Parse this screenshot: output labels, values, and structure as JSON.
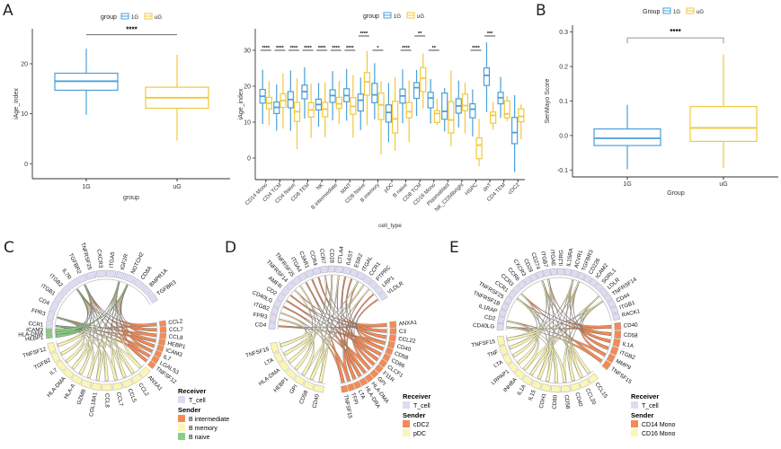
{
  "colors": {
    "g1": "#4a9fd8",
    "uG": "#f2c83a",
    "receiver": "#dddcf3",
    "orange": "#f58a55",
    "yellow": "#fbf6b6",
    "green": "#8ccf84",
    "axis": "#333333",
    "sig": "#555555"
  },
  "panels": {
    "A": "A",
    "B": "B",
    "C": "C",
    "D": "D",
    "E": "E"
  },
  "chart_data": [
    {
      "id": "A1",
      "type": "box",
      "title": "",
      "legend": {
        "title": "group",
        "items": [
          "1G",
          "uG"
        ],
        "position": "top"
      },
      "xlabel": "group",
      "ylabel": "iAge_index",
      "ylim": [
        -3,
        27
      ],
      "yticks": [
        0,
        10,
        20
      ],
      "categories": [
        "1G",
        "uG"
      ],
      "boxes": [
        {
          "group": "1G",
          "min": 9.8,
          "q1": 14.7,
          "median": 16.5,
          "q3": 18.1,
          "max": 23.0
        },
        {
          "group": "uG",
          "min": 4.6,
          "q1": 11.1,
          "median": 13.2,
          "q3": 15.3,
          "max": 21.8
        }
      ],
      "significance": [
        {
          "from": "1G",
          "to": "uG",
          "label": "****",
          "y": 25.8
        }
      ]
    },
    {
      "id": "A2",
      "type": "box",
      "legend": {
        "title": "group",
        "items": [
          "1G",
          "uG"
        ],
        "position": "top"
      },
      "xlabel": "cell_type",
      "ylabel": "iAge_index",
      "ylim": [
        -6,
        36
      ],
      "yticks": [
        0,
        10,
        20,
        30
      ],
      "categories": [
        "CD14 Mono",
        "CD4 TCM",
        "CD4 Naive",
        "CD8 TEM",
        "NK",
        "B intermediate",
        "MAIT",
        "CD8 Naive",
        "B memory",
        "pDC",
        "B naive",
        "CD8 TCM",
        "CD16 Mono",
        "Plasmablast",
        "NK_CD56bright",
        "HSPC",
        "dnT",
        "CD4 TEM",
        "cDC2"
      ],
      "series": [
        {
          "name": "1G",
          "boxes": [
            [
              9.5,
              15.3,
              17.2,
              19.1,
              24.6
            ],
            [
              7.6,
              12.4,
              14.1,
              15.6,
              20.5
            ],
            [
              7.6,
              14.0,
              16.3,
              18.5,
              24.4
            ],
            [
              11,
              16.5,
              18.5,
              20.3,
              25.3
            ],
            [
              8.7,
              13.4,
              14.9,
              16.4,
              20.9
            ],
            [
              10.5,
              15.5,
              17.4,
              19.0,
              24.2
            ],
            [
              10.4,
              15.7,
              17.4,
              19.3,
              24.8
            ],
            [
              7.8,
              13.1,
              16.1,
              17.8,
              22.4
            ],
            [
              10.8,
              15.4,
              17.6,
              20.8,
              26.4
            ],
            [
              4.4,
              10.0,
              12.7,
              14.8,
              20.9
            ],
            [
              9.7,
              15.3,
              17.3,
              19.2,
              24.7
            ],
            [
              11.7,
              16.6,
              19.6,
              21.0,
              24.5
            ],
            [
              9.6,
              14.0,
              16.7,
              18.3,
              22.0
            ],
            [
              7.4,
              10.8,
              13.0,
              18.1,
              19.5
            ],
            [
              8.5,
              12.5,
              14.5,
              16.5,
              21.6
            ],
            [
              6.0,
              11.2,
              13.6,
              15.1,
              19.1
            ],
            [
              12.8,
              20.2,
              23.0,
              25.1,
              32.2
            ],
            [
              11.2,
              15.1,
              16.8,
              18.3,
              22.6
            ],
            [
              -3.9,
              4.0,
              7.1,
              11.3,
              17.5
            ]
          ]
        },
        {
          "name": "uG",
          "boxes": [
            [
              9.2,
              13.7,
              15.3,
              16.9,
              21.4
            ],
            [
              8.2,
              14.1,
              16.0,
              17.9,
              23.6
            ],
            [
              2.5,
              10.2,
              12.9,
              15.5,
              22.2
            ],
            [
              5.6,
              11.4,
              13.4,
              15.4,
              20.7
            ],
            [
              5.8,
              11.5,
              13.6,
              15.5,
              21.1
            ],
            [
              9.4,
              13.8,
              15.1,
              16.9,
              21.5
            ],
            [
              5.7,
              12.2,
              14.4,
              16.8,
              23.1
            ],
            [
              9.1,
              17.5,
              21.2,
              23.8,
              29.8
            ],
            [
              1.0,
              10.7,
              14.8,
              18.1,
              21.4
            ],
            [
              2.0,
              7.0,
              10.9,
              15.8,
              22.6
            ],
            [
              4.5,
              11.2,
              12.9,
              15.5,
              21.6
            ],
            [
              13.8,
              18.5,
              22.2,
              25.2,
              29.1
            ],
            [
              9.3,
              9.9,
              12.4,
              13.2,
              16.4
            ],
            [
              3.3,
              7.0,
              10.6,
              15.7,
              24.4
            ],
            [
              6.8,
              13.2,
              14.6,
              17.8,
              21.0
            ],
            [
              -2.3,
              -0.2,
              3.6,
              5.6,
              10.9
            ],
            [
              7.9,
              9.7,
              11.9,
              12.8,
              15.6
            ],
            [
              10.3,
              11.2,
              12.3,
              15.9,
              17.3
            ],
            [
              5.2,
              10.1,
              11.6,
              13.7,
              15.0
            ]
          ]
        }
      ],
      "significance": [
        {
          "category": "CD14 Mono",
          "label": "****"
        },
        {
          "category": "CD4 TCM",
          "label": "****"
        },
        {
          "category": "CD4 Naive",
          "label": "****"
        },
        {
          "category": "CD8 TEM",
          "label": "****"
        },
        {
          "category": "NK",
          "label": "****"
        },
        {
          "category": "B intermediate",
          "label": "****"
        },
        {
          "category": "MAIT",
          "label": "****"
        },
        {
          "category": "CD8 Naive",
          "label": "****",
          "high": true
        },
        {
          "category": "B memory",
          "label": "*"
        },
        {
          "category": "B naive",
          "label": "****"
        },
        {
          "category": "CD8 TCM",
          "label": "**",
          "high": true
        },
        {
          "category": "CD16 Mono",
          "label": "**"
        },
        {
          "category": "HSPC",
          "label": "****"
        },
        {
          "category": "dnT",
          "label": "***",
          "high": true
        }
      ]
    },
    {
      "id": "B",
      "type": "box",
      "legend": {
        "title": "Group",
        "items": [
          "1G",
          "uG"
        ],
        "position": "top"
      },
      "xlabel": "Group",
      "ylabel": "SenMayo Score",
      "ylim": [
        -0.12,
        0.32
      ],
      "yticks": [
        -0.1,
        0.0,
        0.1,
        0.2,
        0.3
      ],
      "categories": [
        "1G",
        "uG"
      ],
      "boxes": [
        {
          "group": "1G",
          "min": -0.098,
          "q1": -0.029,
          "median": -0.008,
          "q3": 0.019,
          "max": 0.089
        },
        {
          "group": "uG",
          "min": -0.095,
          "q1": -0.017,
          "median": 0.022,
          "q3": 0.084,
          "max": 0.235
        }
      ],
      "significance": [
        {
          "from": "1G",
          "to": "uG",
          "label": "****",
          "y": 0.283
        }
      ]
    },
    {
      "id": "C",
      "type": "chord",
      "receivers": [
        "CCR1",
        "FPR3",
        "CD4",
        "ITGB1",
        "ITGB2",
        "IL7R",
        "TGFBR2",
        "TNFRSF25",
        "CXCR3",
        "ITGA5",
        "IGF2R",
        "NOTCH2",
        "CD8A",
        "BMPR1A",
        "TGFBR3"
      ],
      "senders": [
        {
          "group": "B intermediate",
          "color": "orange",
          "ligands": [
            "CCL2",
            "CCL7",
            "CCL8",
            "HEBP1",
            "ICAM3",
            "IL7",
            "LGALS3",
            "TNFSF12"
          ]
        },
        {
          "group": "B memory",
          "color": "yellow",
          "ligands": [
            "ANXA1",
            "CCL2",
            "CCL5",
            "CCL7",
            "CCL8",
            "COL18A1",
            "GZMB",
            "HLA-A",
            "HLA-DMA",
            "IL7",
            "TGFB2",
            "TNFSF12"
          ]
        },
        {
          "group": "B naive",
          "color": "green",
          "ligands": [
            "HEBP1",
            "HLA-DMA",
            "ICAM3"
          ]
        }
      ],
      "legend": {
        "receiver_title": "Receiver",
        "receiver": "T_cell",
        "sender_title": "Sender",
        "sender_items": [
          "B intermediate",
          "B memory",
          "B naive"
        ]
      }
    },
    {
      "id": "D",
      "type": "chord",
      "receivers": [
        "CD4",
        "FPR3",
        "ITGB2",
        "CD40LG",
        "CD2",
        "AMFR",
        "TNFRSF14",
        "TNFRSF25",
        "ITGA4",
        "C3AR1",
        "CCR4",
        "CCR7",
        "CD28",
        "CTLA4",
        "IL6ST",
        "ESR2",
        "ITGAL",
        "CCR1",
        "PTPRC",
        "LRP1",
        "VLDLR"
      ],
      "senders": [
        {
          "group": "cDC2",
          "color": "orange",
          "ligands": [
            "ANXA1",
            "C3",
            "CCL22",
            "CD40",
            "CD58",
            "CD86",
            "CLCF1",
            "F11R",
            "GPI",
            "HLA-DMA",
            "HLA-DRA",
            "LTA",
            "TFPI",
            "TNFSF15"
          ]
        },
        {
          "group": "pDC",
          "color": "yellow",
          "ligands": [
            "CD40",
            "CD58",
            "GPI",
            "HEBP1",
            "HLA-DMA",
            "LTA",
            "TNFSF15"
          ]
        }
      ],
      "legend": {
        "receiver_title": "Receiver",
        "receiver": "T_cell",
        "sender_title": "Sender",
        "sender_items": [
          "cDC2",
          "pDC"
        ]
      }
    },
    {
      "id": "E",
      "type": "chord",
      "receivers": [
        "CD40LG",
        "CD2",
        "IL1RAP",
        "TNFRSF1B",
        "TNFRSF25",
        "CCR1",
        "CCR3",
        "CCR6",
        "CXCR3",
        "CD28",
        "CD274",
        "ITGB7",
        "ITGAE",
        "IL2RG",
        "IL15RA",
        "ACVR1",
        "TGFBR3",
        "CD226",
        "ICAM2",
        "SORL1",
        "LDLR",
        "TNFRSF14",
        "CD44",
        "ITGB1",
        "RACK1"
      ],
      "senders": [
        {
          "group": "CD14 Mono",
          "color": "orange",
          "ligands": [
            "CD40",
            "CD58",
            "IL1A",
            "ITGB2",
            "MMP9",
            "TNFSF15"
          ]
        },
        {
          "group": "CD16 Mono",
          "color": "yellow",
          "ligands": [
            "CCL15",
            "CCL20",
            "CD40",
            "CD58",
            "CD80",
            "CDH1",
            "IL15",
            "IL1A",
            "INHBA",
            "LRPAP1",
            "LTA",
            "TNF",
            "TNFSF15"
          ]
        }
      ],
      "legend": {
        "receiver_title": "Receiver",
        "receiver": "T_cell",
        "sender_title": "Sender",
        "sender_items": [
          "CD14 Mono",
          "CD16 Mono"
        ]
      }
    }
  ]
}
